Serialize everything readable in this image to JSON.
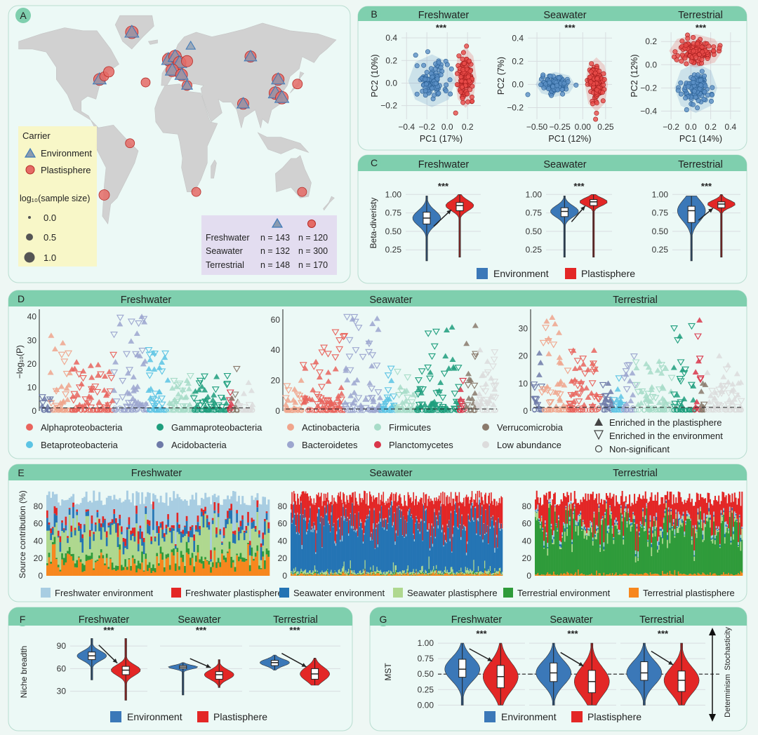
{
  "colors": {
    "header": "#7fcfae",
    "panel_bg": "#ecf9f6",
    "panel_border": "#b9ddd0",
    "environment": "#3b78b8",
    "plastisphere": "#e32726",
    "map_land": "#d1d1d1",
    "legend_carrier_bg": "#f9f6c3",
    "legend_table_bg": "#e3dbef",
    "grid": "#d8dde0"
  },
  "labels": {
    "A": "A",
    "B": "B",
    "C": "C",
    "D": "D",
    "E": "E",
    "F": "F",
    "G": "G"
  },
  "habitats": [
    "Freshwater",
    "Seawater",
    "Terrestrial"
  ],
  "significance": "***",
  "panelA": {
    "carrier_title": "Carrier",
    "carrier_items": [
      "Environment",
      "Plastisphere"
    ],
    "size_title": "log₁₀(sample size)",
    "size_values": [
      "0.0",
      "0.5",
      "1.0"
    ],
    "table": {
      "rows": [
        {
          "habitat": "Freshwater",
          "env": "n = 143",
          "pla": "n = 120"
        },
        {
          "habitat": "Seawater",
          "env": "n = 132",
          "pla": "n = 300"
        },
        {
          "habitat": "Terrestrial",
          "env": "n = 148",
          "pla": "n = 170"
        }
      ]
    },
    "sites": [
      {
        "name": "greenland",
        "lon": -42,
        "lat": 71,
        "env": true,
        "pla": true,
        "size": 1.0
      },
      {
        "name": "us-east",
        "lon": -77,
        "lat": 40,
        "env": true,
        "pla": true,
        "size": 0.9
      },
      {
        "name": "us-east-2",
        "lon": -72,
        "lat": 42,
        "env": false,
        "pla": true,
        "size": 0.5
      },
      {
        "name": "us-east-3",
        "lon": -67,
        "lat": 45,
        "env": false,
        "pla": true,
        "size": 0.7
      },
      {
        "name": "atlantic",
        "lon": -27,
        "lat": 38,
        "env": false,
        "pla": true,
        "size": 0.5
      },
      {
        "name": "uk",
        "lon": -2,
        "lat": 53,
        "env": true,
        "pla": true,
        "size": 1.0
      },
      {
        "name": "north-sea",
        "lon": 5,
        "lat": 55,
        "env": true,
        "pla": true,
        "size": 1.0
      },
      {
        "name": "germany",
        "lon": 10,
        "lat": 51,
        "env": true,
        "pla": true,
        "size": 1.0
      },
      {
        "name": "poland",
        "lon": 18,
        "lat": 52,
        "env": false,
        "pla": true,
        "size": 0.8
      },
      {
        "name": "scandinavia",
        "lon": 22,
        "lat": 62,
        "env": true,
        "pla": false,
        "size": 0.4
      },
      {
        "name": "france",
        "lon": 2,
        "lat": 46,
        "env": true,
        "pla": true,
        "size": 1.0
      },
      {
        "name": "italy",
        "lon": 12,
        "lat": 43,
        "env": true,
        "pla": true,
        "size": 0.9
      },
      {
        "name": "mediterranean",
        "lon": 18,
        "lat": 36,
        "env": true,
        "pla": true,
        "size": 0.6
      },
      {
        "name": "russia",
        "lon": 87,
        "lat": 55,
        "env": true,
        "pla": true,
        "size": 0.8
      },
      {
        "name": "north-china",
        "lon": 117,
        "lat": 40,
        "env": true,
        "pla": true,
        "size": 0.9
      },
      {
        "name": "china",
        "lon": 114,
        "lat": 31,
        "env": true,
        "pla": true,
        "size": 1.0
      },
      {
        "name": "east-china",
        "lon": 121,
        "lat": 28,
        "env": true,
        "pla": true,
        "size": 1.0
      },
      {
        "name": "india",
        "lon": 79,
        "lat": 24,
        "env": true,
        "pla": true,
        "size": 0.8
      },
      {
        "name": "japan",
        "lon": 138,
        "lat": 37,
        "env": false,
        "pla": true,
        "size": 0.6
      },
      {
        "name": "brazil",
        "lon": -44,
        "lat": -2,
        "env": false,
        "pla": true,
        "size": 0.5
      },
      {
        "name": "chile",
        "lon": -72,
        "lat": -36,
        "env": false,
        "pla": true,
        "size": 0.7
      },
      {
        "name": "south-africa",
        "lon": 28,
        "lat": -34,
        "env": false,
        "pla": true,
        "size": 0.5
      },
      {
        "name": "australia-se",
        "lon": 143,
        "lat": -34,
        "env": false,
        "pla": true,
        "size": 0.5
      }
    ]
  },
  "chart_data": [
    {
      "panel": "B",
      "type": "scatter",
      "series_names": [
        "Environment",
        "Plastisphere"
      ],
      "plots": [
        {
          "title": "Freshwater",
          "xlabel": "PC1 (17%)",
          "ylabel": "PC2 (10%)",
          "xlim": [
            -0.45,
            0.33
          ],
          "ylim": [
            -0.32,
            0.45
          ],
          "xticks": [
            -0.4,
            -0.2,
            0.0,
            0.2
          ],
          "xticklabels": [
            "−0.4",
            "−0.2",
            "0.0",
            "0.2"
          ],
          "yticks": [
            -0.2,
            0.0,
            0.2,
            0.4
          ],
          "yticklabels": [
            "−0.2",
            "0.0",
            "0.2",
            "0.4"
          ],
          "env_center": [
            -0.15,
            0.02
          ],
          "env_spread": [
            0.13,
            0.13
          ],
          "pla_center": [
            0.18,
            0.05
          ],
          "pla_spread": [
            0.06,
            0.15
          ]
        },
        {
          "title": "Seawater",
          "xlabel": "PC1 (12%)",
          "ylabel": "PC2 (7%)",
          "xlim": [
            -0.6,
            0.32
          ],
          "ylim": [
            -0.3,
            0.45
          ],
          "xticks": [
            -0.5,
            -0.25,
            0.0,
            0.25
          ],
          "xticklabels": [
            "−0.50",
            "−0.25",
            "0.00",
            "0.25"
          ],
          "yticks": [
            -0.2,
            0.0,
            0.2,
            0.4
          ],
          "yticklabels": [
            "−0.2",
            "0.0",
            "0.2",
            "0.4"
          ],
          "env_center": [
            -0.3,
            0.0
          ],
          "env_spread": [
            0.12,
            0.06
          ],
          "pla_center": [
            0.15,
            0.0
          ],
          "pla_spread": [
            0.07,
            0.13
          ]
        },
        {
          "title": "Terrestrial",
          "xlabel": "PC1 (14%)",
          "ylabel": "PC2 (12%)",
          "xlim": [
            -0.3,
            0.5
          ],
          "ylim": [
            -0.47,
            0.28
          ],
          "xticks": [
            -0.2,
            0.0,
            0.2,
            0.4
          ],
          "xticklabels": [
            "−0.2",
            "0.0",
            "0.2",
            "0.4"
          ],
          "yticks": [
            -0.4,
            -0.2,
            0.0,
            0.2
          ],
          "yticklabels": [
            "−0.4",
            "−0.2",
            "0.0",
            "0.2"
          ],
          "env_center": [
            0.05,
            -0.2
          ],
          "env_spread": [
            0.12,
            0.12
          ],
          "pla_center": [
            0.05,
            0.12
          ],
          "pla_spread": [
            0.15,
            0.08
          ]
        }
      ]
    },
    {
      "panel": "C",
      "type": "violin",
      "ylabel": "Beta-diveristy",
      "ylim": [
        0.1,
        1.05
      ],
      "yticks": [
        0.25,
        0.5,
        0.75,
        1.0
      ],
      "yticklabels": [
        "0.25",
        "0.50",
        "0.75",
        "1.00"
      ],
      "legend": [
        "Environment",
        "Plastisphere"
      ],
      "plots": [
        {
          "title": "Freshwater",
          "env": {
            "q1": 0.6,
            "median": 0.68,
            "q3": 0.76,
            "min": 0.1,
            "max": 0.98
          },
          "pla": {
            "q1": 0.78,
            "median": 0.85,
            "q3": 0.89,
            "min": 0.15,
            "max": 1.0
          }
        },
        {
          "title": "Seawater",
          "env": {
            "q1": 0.7,
            "median": 0.77,
            "q3": 0.82,
            "min": 0.15,
            "max": 0.98
          },
          "pla": {
            "q1": 0.85,
            "median": 0.9,
            "q3": 0.93,
            "min": 0.15,
            "max": 1.0
          }
        },
        {
          "title": "Terrestrial",
          "env": {
            "q1": 0.62,
            "median": 0.78,
            "q3": 0.84,
            "min": 0.1,
            "max": 0.98
          },
          "pla": {
            "q1": 0.82,
            "median": 0.87,
            "q3": 0.9,
            "min": 0.15,
            "max": 1.0
          }
        }
      ]
    },
    {
      "panel": "D",
      "type": "scatter",
      "ylabel": "−log₁₀(P)",
      "threshold": 1.3,
      "taxa": [
        {
          "name": "Alphaproteobacteria",
          "color": "#e9645d"
        },
        {
          "name": "Betaproteobacteria",
          "color": "#5cc4e4"
        },
        {
          "name": "Gammaproteobacteria",
          "color": "#1e9e7d"
        },
        {
          "name": "Acidobacteria",
          "color": "#6e7aa8"
        },
        {
          "name": "Actinobacteria",
          "color": "#f0a58c"
        },
        {
          "name": "Bacteroidetes",
          "color": "#9ca6cf"
        },
        {
          "name": "Firmicutes",
          "color": "#a7dcc8"
        },
        {
          "name": "Planctomycetes",
          "color": "#d9364a"
        },
        {
          "name": "Verrucomicrobia",
          "color": "#8a7a6c"
        },
        {
          "name": "Low abundance",
          "color": "#dcdcdc"
        }
      ],
      "markers": [
        {
          "name": "Enriched in the plastisphere",
          "shape": "triangle-up"
        },
        {
          "name": "Enriched in the environment",
          "shape": "triangle-down"
        },
        {
          "name": "Non-significant",
          "shape": "circle"
        }
      ],
      "plots": [
        {
          "title": "Freshwater",
          "ylim": [
            0,
            42
          ],
          "yticks": [
            0,
            10,
            20,
            30,
            40
          ],
          "groups": [
            {
              "taxon": "Acidobacteria",
              "share": 0.04,
              "peak": 6
            },
            {
              "taxon": "Actinobacteria",
              "share": 0.1,
              "peak": 32
            },
            {
              "taxon": "Alphaproteobacteria",
              "share": 0.2,
              "peak": 24
            },
            {
              "taxon": "Bacteroidetes",
              "share": 0.16,
              "peak": 40
            },
            {
              "taxon": "Betaproteobacteria",
              "share": 0.1,
              "peak": 26
            },
            {
              "taxon": "Firmicutes",
              "share": 0.12,
              "peak": 15
            },
            {
              "taxon": "Gammaproteobacteria",
              "share": 0.16,
              "peak": 15
            },
            {
              "taxon": "Planctomycetes",
              "share": 0.02,
              "peak": 8
            },
            {
              "taxon": "Verrucomicrobia",
              "share": 0.03,
              "peak": 18
            },
            {
              "taxon": "Low abundance",
              "share": 0.07,
              "peak": 12
            }
          ]
        },
        {
          "title": "Seawater",
          "ylim": [
            0,
            65
          ],
          "yticks": [
            0,
            20,
            40,
            60
          ],
          "groups": [
            {
              "taxon": "Actinobacteria",
              "share": 0.08,
              "peak": 20
            },
            {
              "taxon": "Alphaproteobacteria",
              "share": 0.2,
              "peak": 52
            },
            {
              "taxon": "Bacteroidetes",
              "share": 0.17,
              "peak": 62
            },
            {
              "taxon": "Betaproteobacteria",
              "share": 0.07,
              "peak": 28
            },
            {
              "taxon": "Firmicutes",
              "share": 0.1,
              "peak": 26
            },
            {
              "taxon": "Gammaproteobacteria",
              "share": 0.2,
              "peak": 55
            },
            {
              "taxon": "Planctomycetes",
              "share": 0.03,
              "peak": 20
            },
            {
              "taxon": "Verrucomicrobia",
              "share": 0.05,
              "peak": 56
            },
            {
              "taxon": "Low abundance",
              "share": 0.1,
              "peak": 40
            }
          ]
        },
        {
          "title": "Terrestrial",
          "ylim": [
            0,
            36
          ],
          "yticks": [
            0,
            10,
            20,
            30
          ],
          "groups": [
            {
              "taxon": "Acidobacteria",
              "share": 0.04,
              "peak": 21
            },
            {
              "taxon": "Actinobacteria",
              "share": 0.13,
              "peak": 34
            },
            {
              "taxon": "Alphaproteobacteria",
              "share": 0.16,
              "peak": 22
            },
            {
              "taxon": "Acidobacteria",
              "share": 0.05,
              "peak": 10
            },
            {
              "taxon": "Betaproteobacteria",
              "share": 0.05,
              "peak": 12
            },
            {
              "taxon": "Bacteroidetes",
              "share": 0.06,
              "peak": 20
            },
            {
              "taxon": "Firmicutes",
              "share": 0.18,
              "peak": 18
            },
            {
              "taxon": "Gammaproteobacteria",
              "share": 0.1,
              "peak": 31
            },
            {
              "taxon": "Planctomycetes",
              "share": 0.03,
              "peak": 33
            },
            {
              "taxon": "Verrucomicrobia",
              "share": 0.03,
              "peak": 10
            },
            {
              "taxon": "Low abundance",
              "share": 0.17,
              "peak": 20
            }
          ]
        }
      ]
    },
    {
      "panel": "E",
      "type": "bar",
      "stacked": true,
      "ylabel": "Source contribution (%)",
      "ylim": [
        0,
        100
      ],
      "yticks": [
        0,
        20,
        40,
        60,
        80
      ],
      "sources": [
        {
          "name": "Freshwater environment",
          "color": "#a8cde2"
        },
        {
          "name": "Freshwater plastisphere",
          "color": "#e32726"
        },
        {
          "name": "Seawater environment",
          "color": "#2474b4"
        },
        {
          "name": "Seawater plastisphere",
          "color": "#afd88f"
        },
        {
          "name": "Terrestrial environment",
          "color": "#2f9b3a"
        },
        {
          "name": "Terrestrial plastisphere",
          "color": "#f7871e"
        }
      ],
      "plots": [
        {
          "title": "Freshwater",
          "n_samples": 120,
          "mean_composition": [
            0.3,
            0.06,
            0.1,
            0.3,
            0.06,
            0.18
          ]
        },
        {
          "title": "Seawater",
          "n_samples": 300,
          "mean_composition": [
            0.02,
            0.3,
            0.62,
            0.03,
            0.01,
            0.02
          ]
        },
        {
          "title": "Terrestrial",
          "n_samples": 170,
          "mean_composition": [
            0.03,
            0.3,
            0.02,
            0.05,
            0.58,
            0.02
          ]
        }
      ]
    },
    {
      "panel": "F",
      "type": "violin",
      "ylabel": "Niche breadth",
      "ylim": [
        12,
        105
      ],
      "yticks": [
        30,
        60,
        90
      ],
      "yticklabels": [
        "30",
        "60",
        "90"
      ],
      "legend": [
        "Environment",
        "Plastisphere"
      ],
      "plots": [
        {
          "title": "Freshwater",
          "env": {
            "q1": 72,
            "median": 77,
            "q3": 82,
            "min": 45,
            "max": 100
          },
          "pla": {
            "q1": 52,
            "median": 58,
            "q3": 63,
            "min": 18,
            "max": 100
          }
        },
        {
          "title": "Seawater",
          "env": {
            "q1": 60,
            "median": 62,
            "q3": 64,
            "min": 25,
            "max": 68
          },
          "pla": {
            "q1": 46,
            "median": 52,
            "q3": 56,
            "min": 35,
            "max": 72
          }
        },
        {
          "title": "Terrestrial",
          "env": {
            "q1": 64,
            "median": 68,
            "q3": 71,
            "min": 58,
            "max": 78
          },
          "pla": {
            "q1": 46,
            "median": 53,
            "q3": 60,
            "min": 38,
            "max": 74
          }
        }
      ]
    },
    {
      "panel": "G",
      "type": "violin",
      "ylabel": "MST",
      "ylim": [
        -0.03,
        1.08
      ],
      "threshold": 0.5,
      "yticks": [
        0,
        0.25,
        0.5,
        0.75,
        1.0
      ],
      "yticklabels": [
        "0.00",
        "0.25",
        "0.50",
        "0.75",
        "1.00"
      ],
      "side_labels": {
        "top": "Stochasticity",
        "bottom": "Determinism"
      },
      "legend": [
        "Environment",
        "Plastisphere"
      ],
      "plots": [
        {
          "title": "Freshwater",
          "env": {
            "q1": 0.45,
            "median": 0.58,
            "q3": 0.74,
            "min": 0.0,
            "max": 1.0
          },
          "pla": {
            "q1": 0.28,
            "median": 0.46,
            "q3": 0.64,
            "min": 0.0,
            "max": 1.0
          }
        },
        {
          "title": "Seawater",
          "env": {
            "q1": 0.38,
            "median": 0.52,
            "q3": 0.68,
            "min": 0.0,
            "max": 1.0
          },
          "pla": {
            "q1": 0.2,
            "median": 0.38,
            "q3": 0.56,
            "min": 0.0,
            "max": 1.0
          }
        },
        {
          "title": "Terrestrial",
          "env": {
            "q1": 0.4,
            "median": 0.52,
            "q3": 0.7,
            "min": 0.0,
            "max": 1.0
          },
          "pla": {
            "q1": 0.22,
            "median": 0.4,
            "q3": 0.55,
            "min": 0.0,
            "max": 1.0
          }
        }
      ]
    }
  ]
}
